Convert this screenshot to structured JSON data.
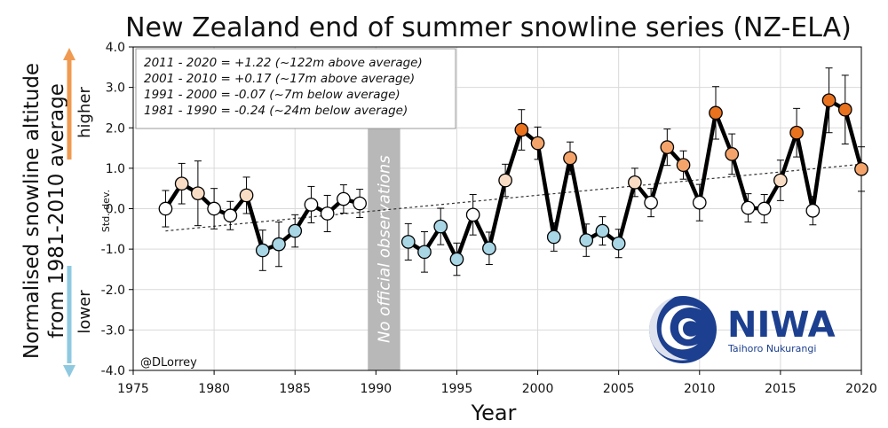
{
  "chart_data": {
    "type": "line",
    "title": "New Zealand end of summer snowline series (NZ-ELA)",
    "xlabel": "Year",
    "ylabel_line1": "Normalised snowline altitude",
    "ylabel_line2": "from 1981-2010 average",
    "ylabel_higher": "higher",
    "ylabel_lower": "lower",
    "ylabel_stddev": "Std. dev.",
    "xlim": [
      1975,
      2020
    ],
    "ylim": [
      -4.0,
      4.0
    ],
    "xticks": [
      "1975",
      "1980",
      "1985",
      "1990",
      "1995",
      "2000",
      "2005",
      "2010",
      "2015",
      "2020"
    ],
    "yticks": [
      "-4.0",
      "-3.0",
      "-2.0",
      "-1.0",
      "0.0",
      "1.0",
      "2.0",
      "3.0",
      "4.0"
    ],
    "grid": true,
    "gap_label": "No official observations",
    "gap_range": [
      1989.5,
      1991.5
    ],
    "credit": "@DLorrey",
    "annotations": [
      "2011 - 2020 = +1.22 (~122m above average)",
      "2001 - 2010 = +0.17 (~17m above average)",
      "1991 - 2000 = -0.07 (~7m below average)",
      "1981 - 1990 = -0.24 (~24m below average)"
    ],
    "trend": {
      "x": [
        1977,
        2020
      ],
      "y": [
        -0.55,
        1.1
      ]
    },
    "segments": [
      {
        "x": [
          1977,
          1978,
          1979,
          1980,
          1981,
          1982,
          1983,
          1984,
          1985,
          1986,
          1987,
          1988,
          1989
        ],
        "y": [
          0.0,
          0.62,
          0.38,
          0.0,
          -0.17,
          0.33,
          -1.03,
          -0.88,
          -0.55,
          0.1,
          -0.12,
          0.24,
          0.13
        ],
        "err": [
          0.45,
          0.5,
          0.8,
          0.5,
          0.35,
          0.45,
          0.5,
          0.55,
          0.4,
          0.45,
          0.45,
          0.35,
          0.35
        ]
      },
      {
        "x": [
          1992,
          1993,
          1994,
          1995,
          1996,
          1997,
          1998,
          1999,
          2000,
          2001,
          2002,
          2003,
          2004,
          2005,
          2006,
          2007,
          2008,
          2009,
          2010,
          2011,
          2012,
          2013,
          2014,
          2015,
          2016,
          2017,
          2018,
          2019,
          2020
        ],
        "y": [
          -0.82,
          -1.07,
          -0.44,
          -1.25,
          -0.15,
          -0.98,
          0.7,
          1.95,
          1.62,
          -0.7,
          1.25,
          -0.78,
          -0.55,
          -0.86,
          0.65,
          0.15,
          1.52,
          1.08,
          0.15,
          2.37,
          1.35,
          0.02,
          0.0,
          0.7,
          1.88,
          -0.05,
          2.68,
          2.45,
          0.98
        ],
        "err": [
          0.45,
          0.5,
          0.45,
          0.4,
          0.5,
          0.4,
          0.4,
          0.5,
          0.4,
          0.35,
          0.4,
          0.4,
          0.35,
          0.35,
          0.35,
          0.35,
          0.45,
          0.35,
          0.45,
          0.65,
          0.5,
          0.35,
          0.35,
          0.5,
          0.6,
          0.35,
          0.8,
          0.85,
          0.55
        ]
      }
    ],
    "color_scale": {
      "strong_positive": "#e8721e",
      "positive": "#f4a46a",
      "slight_positive": "#f9dcc4",
      "neutral": "#ffffff",
      "negative": "#a9d6e5"
    }
  },
  "logo": {
    "word": "NIWA",
    "subtitle": "Taihoro Nukurangi",
    "color": "#1c3f8f"
  }
}
